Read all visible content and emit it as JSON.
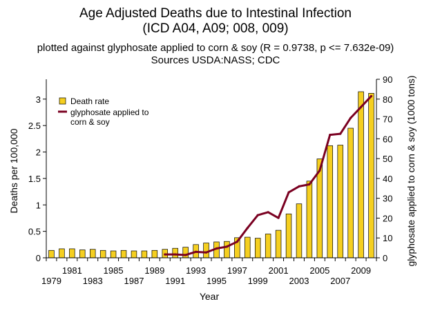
{
  "header": {
    "title_line1": "Age Adjusted Deaths due to Intestinal Infection",
    "title_line2": "(ICD A04, A09; 008, 009)",
    "subtitle_line1": "plotted against glyphosate applied to corn & soy (R = 0.9738, p <= 7.632e-09)",
    "subtitle_line2": "Sources USDA:NASS; CDC"
  },
  "colors": {
    "bar_fill": "#f5cf20",
    "bar_stroke": "#000000",
    "line": "#7a0021",
    "axis": "#000000"
  },
  "chart_data": {
    "type": "bar",
    "xlabel": "Year",
    "ylabel": "Deaths per 100,000",
    "y2label": "glyphosate applied to corn & soy (1000 tons)",
    "ylim": [
      0,
      3.375
    ],
    "y2lim": [
      0,
      90
    ],
    "yticks": [
      "0",
      "0.5",
      "1",
      "1.5",
      "2",
      "2.5",
      "3"
    ],
    "y2ticks": [
      "0",
      "10",
      "20",
      "30",
      "40",
      "50",
      "60",
      "70",
      "80",
      "90"
    ],
    "xtick_labels_low": [
      "1979",
      "1983",
      "1987",
      "1991",
      "1995",
      "1999",
      "2003",
      "2007"
    ],
    "xtick_labels_high": [
      "1981",
      "1985",
      "1989",
      "1993",
      "1997",
      "2001",
      "2005",
      "2009"
    ],
    "legend_position": "top-left",
    "grid": false,
    "categories": [
      "1979",
      "1980",
      "1981",
      "1982",
      "1983",
      "1984",
      "1985",
      "1986",
      "1987",
      "1988",
      "1989",
      "1990",
      "1991",
      "1992",
      "1993",
      "1994",
      "1995",
      "1996",
      "1997",
      "1998",
      "1999",
      "2000",
      "2001",
      "2002",
      "2003",
      "2004",
      "2005",
      "2006",
      "2007",
      "2008",
      "2009",
      "2010"
    ],
    "series": [
      {
        "name": "Death rate",
        "kind": "bar",
        "axis": "left",
        "values": [
          0.14,
          0.17,
          0.17,
          0.15,
          0.16,
          0.14,
          0.13,
          0.14,
          0.13,
          0.13,
          0.14,
          0.16,
          0.18,
          0.2,
          0.25,
          0.28,
          0.3,
          0.31,
          0.38,
          0.39,
          0.37,
          0.45,
          0.52,
          0.83,
          1.02,
          1.45,
          1.87,
          2.12,
          2.13,
          2.45,
          3.14,
          3.11
        ]
      },
      {
        "name": "glyphosate applied to corn & soy",
        "kind": "line",
        "axis": "right",
        "x": [
          "1990",
          "1991",
          "1992",
          "1993",
          "1994",
          "1995",
          "1996",
          "1997",
          "1998",
          "1999",
          "2000",
          "2001",
          "2002",
          "2003",
          "2004",
          "2005",
          "2006",
          "2007",
          "2008",
          "2009",
          "2010"
        ],
        "values": [
          1.7,
          1.7,
          1.4,
          3.0,
          2.7,
          4.7,
          5.6,
          8.1,
          15.0,
          21.5,
          23.0,
          20.1,
          33.0,
          36.0,
          37.0,
          44.0,
          62.0,
          62.5,
          70.5,
          76.0,
          81.5
        ]
      }
    ]
  }
}
